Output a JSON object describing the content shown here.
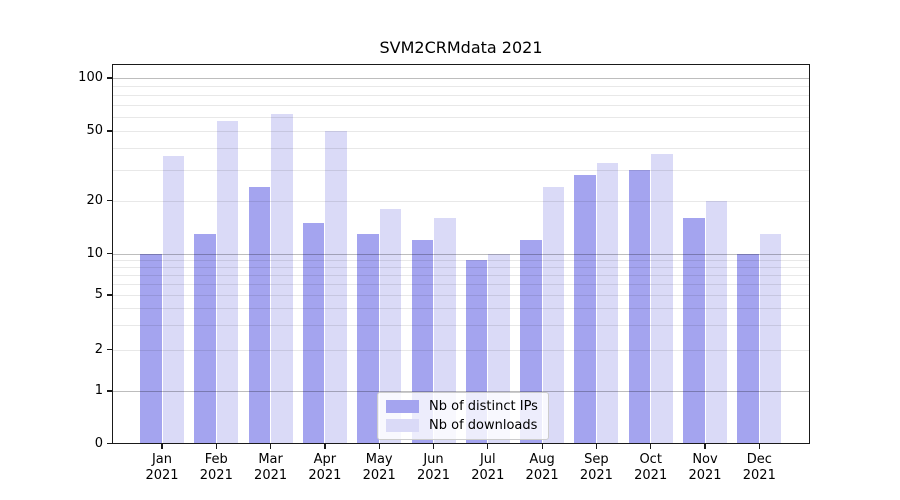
{
  "title": "SVM2CRMdata 2021",
  "chart_data": {
    "type": "bar",
    "title": "SVM2CRMdata 2021",
    "categories": [
      "Jan 2021",
      "Feb 2021",
      "Mar 2021",
      "Apr 2021",
      "May 2021",
      "Jun 2021",
      "Jul 2021",
      "Aug 2021",
      "Sep 2021",
      "Oct 2021",
      "Nov 2021",
      "Dec 2021"
    ],
    "month_labels": [
      "Jan",
      "Feb",
      "Mar",
      "Apr",
      "May",
      "Jun",
      "Jul",
      "Aug",
      "Sep",
      "Oct",
      "Nov",
      "Dec"
    ],
    "year_label": "2021",
    "series": [
      {
        "name": "Nb of distinct IPs",
        "color": "#a4a4ef",
        "values": [
          10,
          13,
          24,
          15,
          13,
          12,
          9,
          12,
          28,
          30,
          16,
          10
        ]
      },
      {
        "name": "Nb of downloads",
        "color": "#dadaf7",
        "values": [
          36,
          57,
          62,
          50,
          18,
          16,
          10,
          24,
          33,
          37,
          20,
          13
        ]
      }
    ],
    "y_axis": {
      "scale": "symlog",
      "tick_labels": [
        0,
        1,
        2,
        5,
        10,
        20,
        50,
        100
      ],
      "major_gridlines": [
        1,
        10,
        100
      ],
      "minor_gridlines": [
        2,
        3,
        4,
        5,
        6,
        7,
        8,
        9,
        20,
        30,
        40,
        50,
        60,
        70,
        80,
        90
      ],
      "ylim": [
        0,
        120
      ]
    },
    "legend_position": "lower center",
    "grid": "both"
  }
}
